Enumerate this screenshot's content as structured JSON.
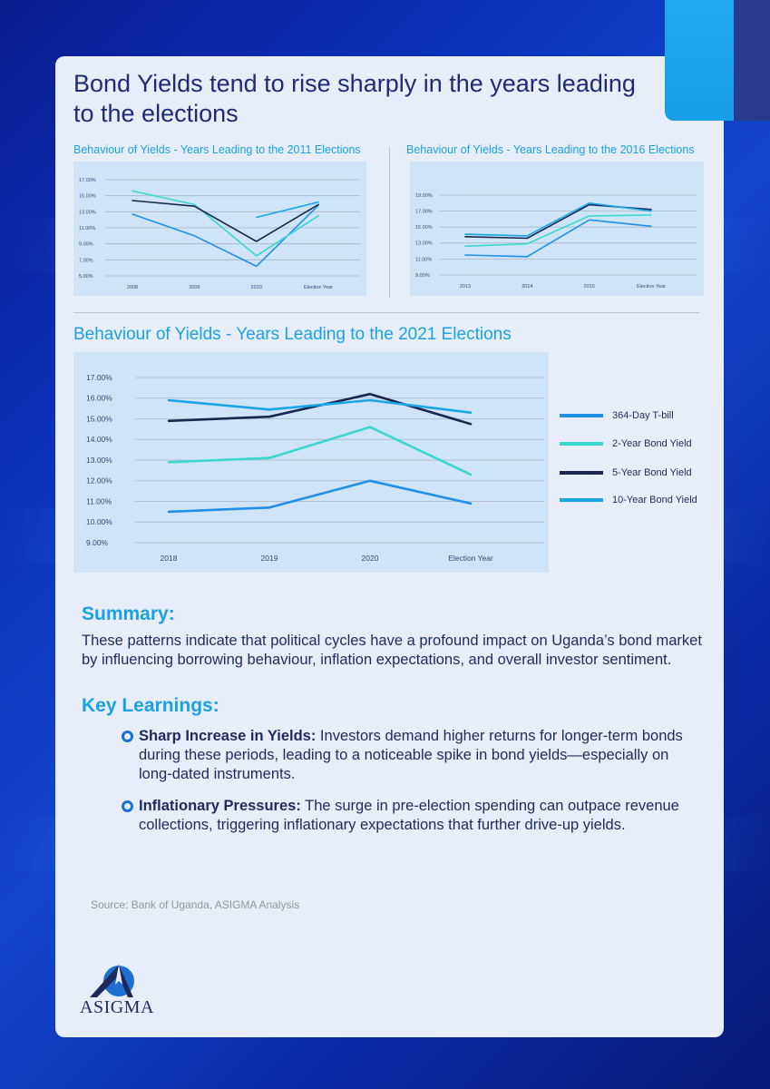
{
  "title": "Bond Yields tend to rise sharply in the years leading to the elections",
  "summary": {
    "heading": "Summary:",
    "text": "These patterns indicate that political cycles have a profound impact on Uganda’s bond market by influencing borrowing behaviour, inflation expectations, and overall investor sentiment."
  },
  "key_learnings": {
    "heading": "Key Learnings:",
    "items": [
      {
        "bold": "Sharp Increase in Yields:",
        "text": " Investors demand higher returns for longer-term bonds during these periods, leading to a noticeable spike in bond yields—especially on long-dated instruments."
      },
      {
        "bold": "Inflationary Pressures:",
        "text": " The surge in pre-election spending can outpace revenue collections, triggering inflationary expectations that further drive-up yields."
      }
    ]
  },
  "source": "Source: Bank of Uganda, ASIGMA Analysis",
  "logo_text": "ASIGMA",
  "colors": {
    "t_bill": "#1f8fe8",
    "two_year": "#3ad6d0",
    "five_year": "#1a2550",
    "ten_year": "#18a6e6",
    "accent": "#1ba0e4",
    "navy": "#1f2a78"
  },
  "chart_data": [
    {
      "type": "line",
      "title": "Behaviour of Yields - Years Leading to the 2011 Elections",
      "categories": [
        "2008",
        "2009",
        "2010",
        "Election Year"
      ],
      "y_ticks": [
        "17.00%",
        "15.00%",
        "13.00%",
        "11.00%",
        "9.00%",
        "7.00%",
        "5.00%"
      ],
      "ylim": [
        5,
        17
      ],
      "series": [
        {
          "name": "364-Day T-bill",
          "color": "#1f8fe8",
          "values": [
            12.7,
            10.0,
            6.2,
            13.8
          ]
        },
        {
          "name": "2-Year Bond Yield",
          "color": "#3ad6d0",
          "values": [
            15.6,
            13.9,
            7.5,
            12.5
          ]
        },
        {
          "name": "5-Year Bond Yield",
          "color": "#1a2550",
          "values": [
            14.4,
            13.7,
            9.3,
            13.9
          ]
        },
        {
          "name": "10-Year Bond Yield",
          "color": "#18a6e6",
          "values": [
            null,
            null,
            12.3,
            14.2
          ]
        }
      ]
    },
    {
      "type": "line",
      "title": "Behaviour of Yields - Years Leading to the 2016 Elections",
      "categories": [
        "2013",
        "2014",
        "2015",
        "Election Year"
      ],
      "y_ticks": [
        "19.00%",
        "17.00%",
        "15.00%",
        "13.00%",
        "11.00%",
        "9.00%"
      ],
      "ylim": [
        9,
        19
      ],
      "series": [
        {
          "name": "364-Day T-bill",
          "color": "#1f8fe8",
          "values": [
            11.5,
            11.3,
            15.9,
            15.1
          ]
        },
        {
          "name": "2-Year Bond Yield",
          "color": "#3ad6d0",
          "values": [
            12.6,
            12.9,
            16.4,
            16.5
          ]
        },
        {
          "name": "5-Year Bond Yield",
          "color": "#1a2550",
          "values": [
            13.8,
            13.6,
            17.8,
            17.2
          ]
        },
        {
          "name": "10-Year Bond Yield",
          "color": "#18a6e6",
          "values": [
            14.1,
            13.9,
            18.0,
            17.0
          ]
        }
      ]
    },
    {
      "type": "line",
      "title": "Behaviour of Yields - Years Leading to the 2021 Elections",
      "categories": [
        "2018",
        "2019",
        "2020",
        "Election Year"
      ],
      "y_ticks": [
        "17.00%",
        "16.00%",
        "15.00%",
        "14.00%",
        "13.00%",
        "12.00%",
        "11.00%",
        "10.00%",
        "9.00%"
      ],
      "ylim": [
        9,
        17
      ],
      "legend_position": "right",
      "series": [
        {
          "name": "364-Day T-bill",
          "color": "#1f8fe8",
          "values": [
            10.5,
            10.7,
            12.0,
            10.9
          ]
        },
        {
          "name": "2-Year Bond Yield",
          "color": "#3ad6d0",
          "values": [
            12.9,
            13.1,
            14.6,
            12.3
          ]
        },
        {
          "name": "5-Year Bond Yield",
          "color": "#1a2550",
          "values": [
            14.9,
            15.1,
            16.2,
            14.75
          ]
        },
        {
          "name": "10-Year Bond Yield",
          "color": "#18a6e6",
          "values": [
            15.9,
            15.45,
            15.9,
            15.3
          ]
        }
      ]
    }
  ]
}
